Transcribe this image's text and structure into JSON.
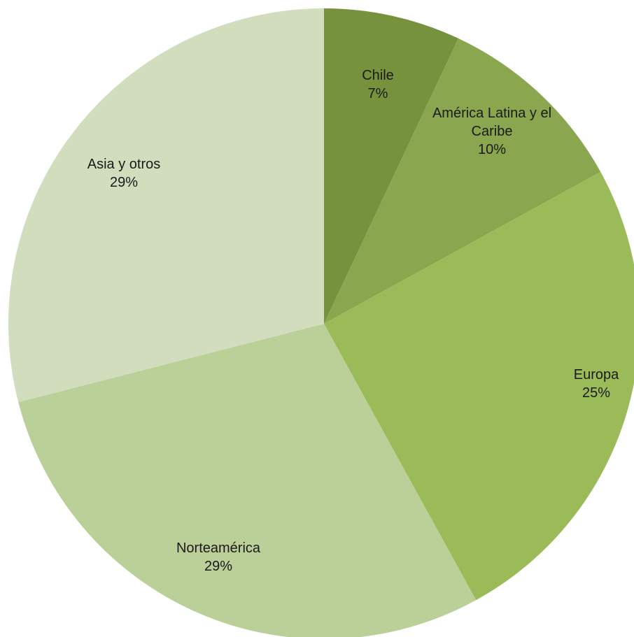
{
  "chart_data": {
    "type": "pie",
    "title": "",
    "slices": [
      {
        "label_lines": [
          "Chile"
        ],
        "percent_text": "7%",
        "value": 7,
        "color": "#76923c"
      },
      {
        "label_lines": [
          "América Latina y el",
          "Caribe"
        ],
        "percent_text": "10%",
        "value": 10,
        "color": "#8aa64e"
      },
      {
        "label_lines": [
          "Europa"
        ],
        "percent_text": "25%",
        "value": 25,
        "color": "#9bbb59"
      },
      {
        "label_lines": [
          "Norteamérica"
        ],
        "percent_text": "29%",
        "value": 29,
        "color": "#bbcf98"
      },
      {
        "label_lines": [
          "Asia y otros"
        ],
        "percent_text": "29%",
        "value": 29,
        "color": "#d1ddbd"
      }
    ],
    "legend": "none",
    "start_angle_deg": 0,
    "direction": "clockwise"
  }
}
